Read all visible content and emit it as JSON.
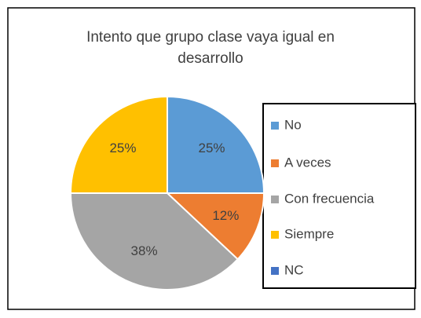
{
  "chart_data": {
    "type": "pie",
    "title": "Intento que grupo clase vaya igual en desarrollo",
    "categories": [
      "No",
      "A veces",
      "Con frecuencia",
      "Siempre",
      "NC"
    ],
    "values": [
      25,
      12,
      38,
      25,
      0
    ],
    "value_labels": [
      "25%",
      "12%",
      "38%",
      "25%",
      null
    ],
    "colors": [
      "#5b9bd5",
      "#ed7d31",
      "#a5a5a5",
      "#ffc000",
      "#4472c4"
    ],
    "legend": "right"
  }
}
